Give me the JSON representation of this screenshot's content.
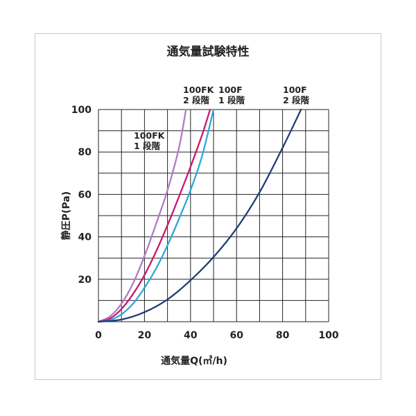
{
  "chart_data": {
    "type": "line",
    "title": "通気量試験特性",
    "xlabel": "通気量Q(㎥/h)",
    "ylabel": "静圧P(Pa)",
    "xlim": [
      0,
      100
    ],
    "ylim": [
      0,
      100
    ],
    "x_ticks": [
      "0",
      "20",
      "40",
      "60",
      "80",
      "100"
    ],
    "y_ticks": [
      "20",
      "40",
      "60",
      "80",
      "100"
    ],
    "grid": true,
    "series": [
      {
        "name_lines": [
          "100FK",
          "1 段階"
        ],
        "color": "#b07ac4",
        "x": [
          0,
          5,
          10,
          15,
          20,
          25,
          30,
          35,
          38
        ],
        "y": [
          0,
          2.5,
          8.5,
          18,
          31,
          46,
          62,
          82,
          100
        ]
      },
      {
        "name_lines": [
          "100FK",
          "2 段階"
        ],
        "color": "#c8176e",
        "x": [
          0,
          5,
          10,
          15,
          20,
          25,
          30,
          35,
          40,
          45,
          48.5
        ],
        "y": [
          0,
          1.5,
          6,
          13,
          22,
          33,
          45.5,
          59,
          73,
          88,
          100
        ]
      },
      {
        "name_lines": [
          "100F",
          "1 段階"
        ],
        "color": "#2aa7dc",
        "x": [
          0,
          5,
          10,
          15,
          20,
          25,
          30,
          35,
          40,
          45,
          50
        ],
        "y": [
          0,
          0.8,
          3.5,
          8.5,
          16,
          25,
          36,
          48.5,
          62,
          78,
          100
        ]
      },
      {
        "name_lines": [
          "100F",
          "2 段階"
        ],
        "color": "#1f3b78",
        "x": [
          0,
          10,
          20,
          30,
          40,
          50,
          60,
          70,
          80,
          88
        ],
        "y": [
          0,
          1,
          4.5,
          10.5,
          19.5,
          30.5,
          44,
          61,
          82,
          100
        ]
      }
    ]
  }
}
